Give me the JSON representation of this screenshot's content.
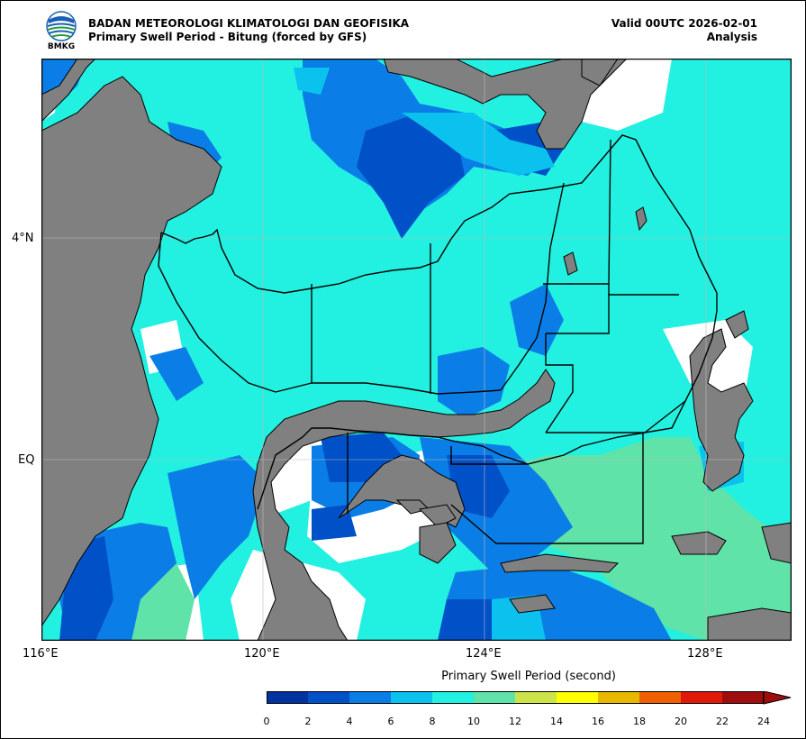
{
  "header": {
    "agency": "BADAN METEOROLOGI KLIMATOLOGI DAN GEOFISIKA",
    "subtitle": "Primary Swell Period - Bitung (forced by GFS)",
    "valid": "Valid 00UTC 2026-02-01",
    "analysis": "Analysis",
    "logo_text": "BMKG"
  },
  "axes": {
    "lon_labels": [
      "116°E",
      "120°E",
      "124°E",
      "128°E"
    ],
    "lat_labels": [
      "4°N",
      "EQ"
    ]
  },
  "colorbar": {
    "title": "Primary Swell Period (second)",
    "labels": [
      "0",
      "2",
      "4",
      "6",
      "8",
      "10",
      "12",
      "14",
      "16",
      "18",
      "20",
      "22",
      "24"
    ],
    "colors": [
      "#0033a0",
      "#0050c8",
      "#0a7ee6",
      "#0bc2ef",
      "#22f0e0",
      "#5fe3a8",
      "#cde449",
      "#ffff00",
      "#e6b800",
      "#f06000",
      "#e01a0a",
      "#a00d0d"
    ]
  },
  "colors": {
    "land": "#808080",
    "boundary": "#000000"
  }
}
